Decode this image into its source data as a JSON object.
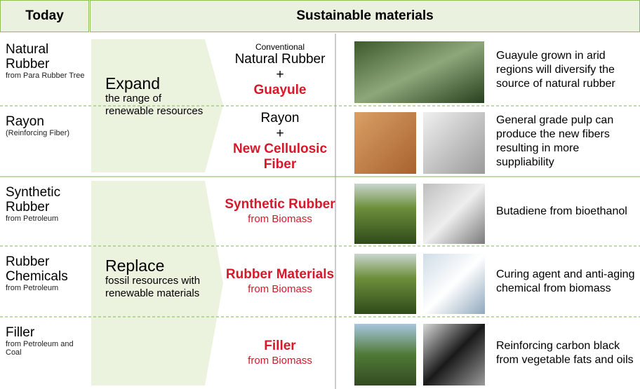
{
  "header": {
    "today": "Today",
    "sustainable": "Sustainable materials"
  },
  "groups": [
    {
      "title": "Expand",
      "text": "the range of renewable resources"
    },
    {
      "title": "Replace",
      "text": "fossil resources with renewable materials"
    }
  ],
  "rows": [
    {
      "today": {
        "name": "Natural Rubber",
        "sub": "from Para Rubber Tree"
      },
      "material": {
        "note": "Conventional",
        "name": "Natural Rubber",
        "plus": "+",
        "addition": "Guayule"
      },
      "description": "Guayule grown in arid regions will diversify the source of natural rubber"
    },
    {
      "today": {
        "name": "Rayon",
        "sub": "(Reinforcing Fiber)"
      },
      "material": {
        "name": "Rayon",
        "plus": "+",
        "addition": "New Cellulosic Fiber"
      },
      "description": "General grade pulp can produce the new fibers resulting in more suppliability"
    },
    {
      "today": {
        "name": "Synthetic Rubber",
        "sub": "from Petroleum"
      },
      "material": {
        "addition": "Synthetic Rubber",
        "source": "from Biomass"
      },
      "description": "Butadiene from bioethanol"
    },
    {
      "today": {
        "name": "Rubber Chemicals",
        "sub": "from Petroleum"
      },
      "material": {
        "addition": "Rubber Materials",
        "source": "from Biomass"
      },
      "description": "Curing agent and anti-aging chemical from biomass"
    },
    {
      "today": {
        "name": "Filler",
        "sub": "from Petroleum and Coal"
      },
      "material": {
        "addition": "Filler",
        "source": "from Biomass"
      },
      "description": "Reinforcing carbon black from vegetable fats and oils"
    }
  ]
}
